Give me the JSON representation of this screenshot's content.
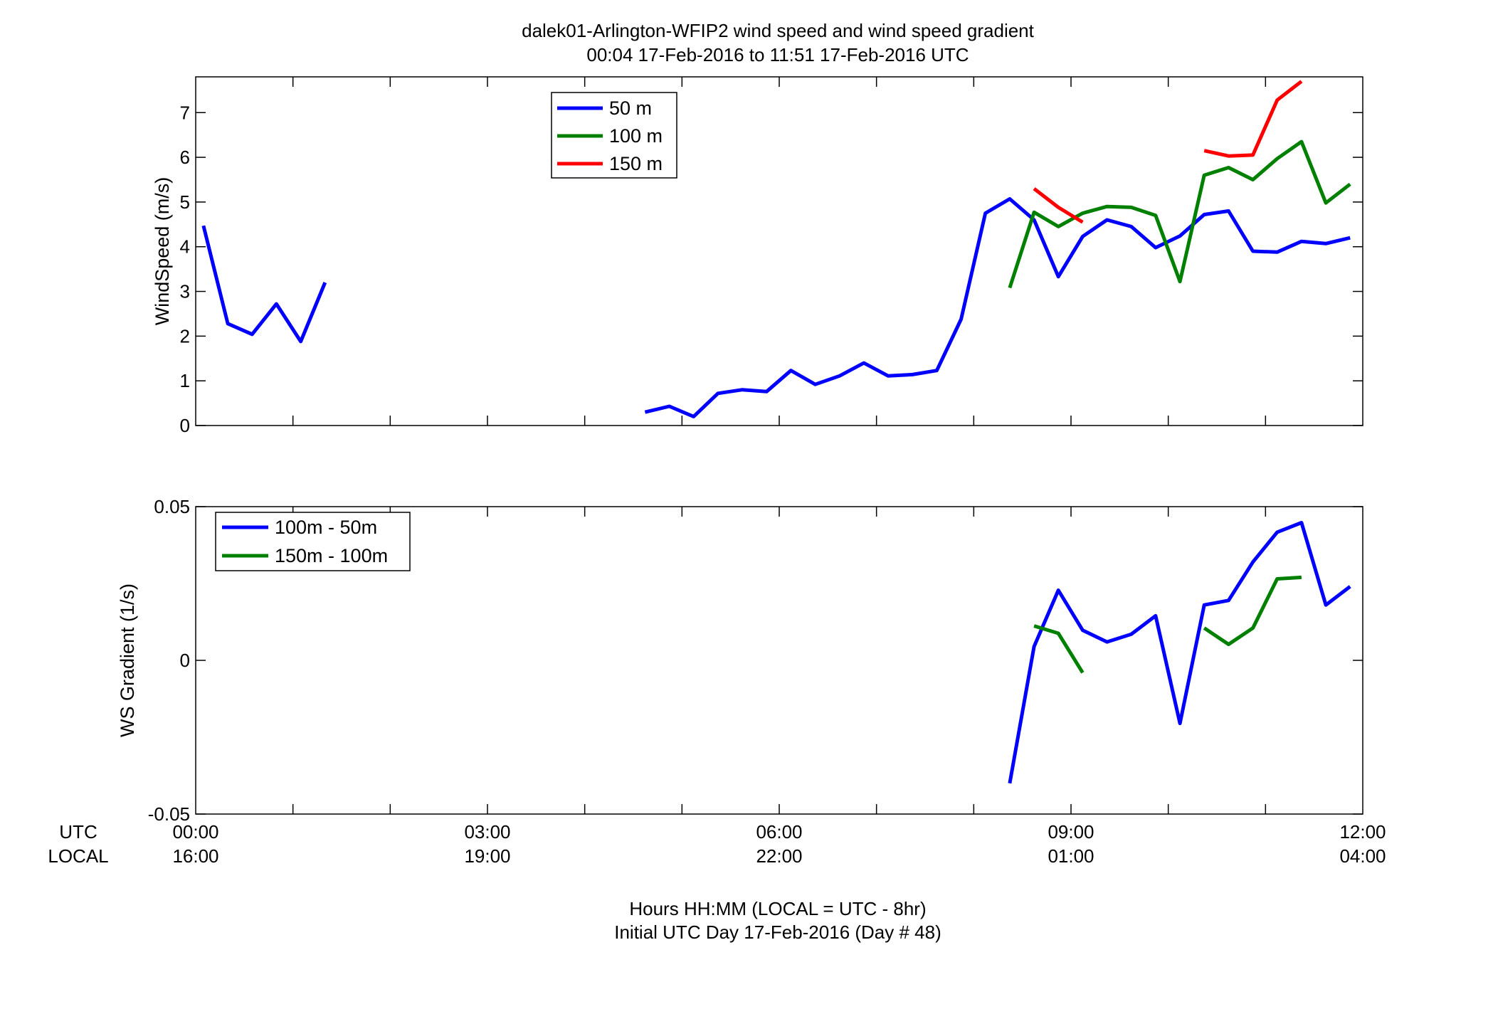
{
  "title_line1": "dalek01-Arlington-WFIP2  wind speed and wind speed gradient",
  "title_line2": "00:04 17-Feb-2016 to 11:51 17-Feb-2016  UTC",
  "time_row_labels": {
    "utc": "UTC",
    "local": "LOCAL"
  },
  "time_ticks": [
    {
      "utc": "00:00",
      "local": "16:00"
    },
    {
      "utc": "03:00",
      "local": "19:00"
    },
    {
      "utc": "06:00",
      "local": "22:00"
    },
    {
      "utc": "09:00",
      "local": "01:00"
    },
    {
      "utc": "12:00",
      "local": "04:00"
    }
  ],
  "footer_line1": "Hours HH:MM  (LOCAL = UTC - 8hr)",
  "footer_line2": "Initial UTC Day 17-Feb-2016 (Day # 48)",
  "colors": {
    "blue": "#0000ff",
    "green": "#008000",
    "red": "#ff0000"
  },
  "chart_data": [
    {
      "type": "line",
      "ylabel": "WindSpeed (m/s)",
      "xlim": [
        0,
        12
      ],
      "ylim": [
        0,
        7.8
      ],
      "yticks": [
        0,
        1,
        2,
        3,
        4,
        5,
        6,
        7
      ],
      "x_unit": "hours UTC",
      "legend": "top-left",
      "series": [
        {
          "name": "50 m",
          "color": "#0000ff",
          "segments": [
            [
              [
                0.08,
                4.47
              ],
              [
                0.33,
                2.28
              ],
              [
                0.58,
                2.04
              ],
              [
                0.83,
                2.72
              ],
              [
                1.08,
                1.88
              ],
              [
                1.33,
                3.2
              ]
            ],
            [
              [
                4.62,
                0.3
              ],
              [
                4.87,
                0.43
              ],
              [
                5.12,
                0.2
              ],
              [
                5.37,
                0.72
              ],
              [
                5.62,
                0.8
              ],
              [
                5.87,
                0.76
              ],
              [
                6.12,
                1.23
              ],
              [
                6.37,
                0.92
              ],
              [
                6.62,
                1.11
              ],
              [
                6.87,
                1.4
              ],
              [
                7.12,
                1.11
              ],
              [
                7.37,
                1.14
              ],
              [
                7.62,
                1.23
              ],
              [
                7.87,
                2.38
              ],
              [
                8.12,
                4.75
              ],
              [
                8.37,
                5.07
              ],
              [
                8.62,
                4.6
              ],
              [
                8.87,
                3.33
              ],
              [
                9.12,
                4.23
              ],
              [
                9.37,
                4.6
              ],
              [
                9.62,
                4.45
              ],
              [
                9.87,
                3.98
              ],
              [
                10.12,
                4.24
              ],
              [
                10.37,
                4.72
              ],
              [
                10.62,
                4.8
              ],
              [
                10.87,
                3.9
              ],
              [
                11.12,
                3.88
              ],
              [
                11.37,
                4.12
              ],
              [
                11.62,
                4.07
              ],
              [
                11.87,
                4.2
              ]
            ]
          ]
        },
        {
          "name": "100 m",
          "color": "#008000",
          "segments": [
            [
              [
                8.37,
                3.08
              ],
              [
                8.62,
                4.77
              ],
              [
                8.87,
                4.45
              ],
              [
                9.12,
                4.75
              ],
              [
                9.37,
                4.9
              ],
              [
                9.62,
                4.88
              ],
              [
                9.87,
                4.7
              ],
              [
                10.12,
                3.22
              ],
              [
                10.37,
                5.6
              ],
              [
                10.62,
                5.77
              ],
              [
                10.87,
                5.5
              ],
              [
                11.12,
                5.97
              ],
              [
                11.37,
                6.35
              ],
              [
                11.62,
                4.98
              ],
              [
                11.87,
                5.4
              ]
            ]
          ]
        },
        {
          "name": "150 m",
          "color": "#ff0000",
          "segments": [
            [
              [
                8.62,
                5.3
              ],
              [
                8.87,
                4.88
              ],
              [
                9.12,
                4.55
              ]
            ],
            [
              [
                10.37,
                6.15
              ],
              [
                10.62,
                6.03
              ],
              [
                10.87,
                6.05
              ],
              [
                11.12,
                7.28
              ],
              [
                11.37,
                7.7
              ]
            ]
          ]
        }
      ]
    },
    {
      "type": "line",
      "ylabel": "WS Gradient (1/s)",
      "xlim": [
        0,
        12
      ],
      "ylim": [
        -0.05,
        0.05
      ],
      "yticks": [
        -0.05,
        0,
        0.05
      ],
      "yticklabels": [
        "-0.05",
        "0",
        "0.05"
      ],
      "x_unit": "hours UTC",
      "legend": "top-left",
      "series": [
        {
          "name": "100m - 50m",
          "color": "#0000ff",
          "segments": [
            [
              [
                8.37,
                -0.04
              ],
              [
                8.62,
                0.0045
              ],
              [
                8.87,
                0.0228
              ],
              [
                9.12,
                0.0098
              ],
              [
                9.37,
                0.006
              ],
              [
                9.62,
                0.0085
              ],
              [
                9.87,
                0.0145
              ],
              [
                10.12,
                -0.0205
              ],
              [
                10.37,
                0.018
              ],
              [
                10.62,
                0.0195
              ],
              [
                10.87,
                0.032
              ],
              [
                11.12,
                0.0417
              ],
              [
                11.37,
                0.0448
              ],
              [
                11.62,
                0.018
              ],
              [
                11.87,
                0.024
              ]
            ]
          ]
        },
        {
          "name": "150m - 100m",
          "color": "#008000",
          "segments": [
            [
              [
                8.62,
                0.0112
              ],
              [
                8.87,
                0.0088
              ],
              [
                9.12,
                -0.004
              ]
            ],
            [
              [
                10.37,
                0.0105
              ],
              [
                10.62,
                0.0052
              ],
              [
                10.87,
                0.0105
              ],
              [
                11.12,
                0.0265
              ],
              [
                11.37,
                0.027
              ]
            ]
          ]
        }
      ]
    }
  ]
}
